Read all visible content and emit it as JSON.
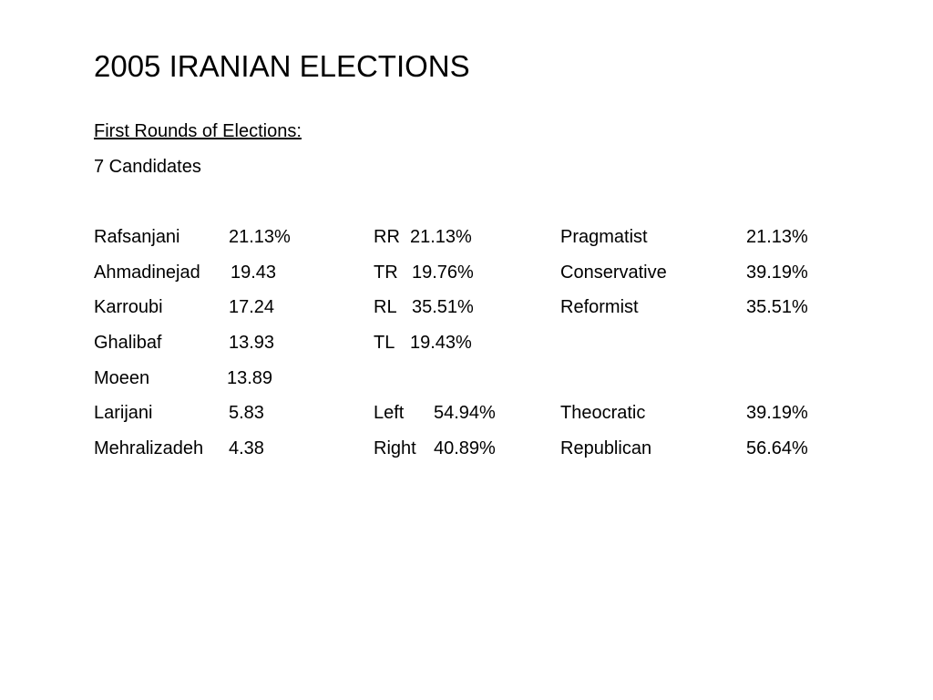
{
  "title": "2005 IRANIAN ELECTIONS",
  "subtitle": "First Rounds of Elections:",
  "candidate_count": "7 Candidates",
  "candidates": [
    {
      "name": "Rafsanjani",
      "value": "21.13%"
    },
    {
      "name": "Ahmadinejad",
      "value": "19.43"
    },
    {
      "name": "Karroubi",
      "value": "17.24"
    },
    {
      "name": "Ghalibaf",
      "value": "13.93"
    },
    {
      "name": "Moeen",
      "value": "13.89"
    },
    {
      "name": "Larijani",
      "value": "5.83"
    },
    {
      "name": "Mehralizadeh",
      "value": "4.38"
    }
  ],
  "quadrants": [
    {
      "label": "RR",
      "value": "21.13%"
    },
    {
      "label": "TR",
      "value": "19.76%"
    },
    {
      "label": "RL",
      "value": "35.51%"
    },
    {
      "label": "TL",
      "value": "19.43%"
    }
  ],
  "axis_lr": [
    {
      "label": "Left",
      "value": "54.94%"
    },
    {
      "label": "Right",
      "value": "40.89%"
    }
  ],
  "factions": [
    {
      "label": "Pragmatist",
      "value": "21.13%"
    },
    {
      "label": "Conservative",
      "value": "39.19%"
    },
    {
      "label": "Reformist",
      "value": "35.51%"
    }
  ],
  "axis_tr": [
    {
      "label": "Theocratic",
      "value": "39.19%"
    },
    {
      "label": "Republican",
      "value": "56.64%"
    }
  ]
}
